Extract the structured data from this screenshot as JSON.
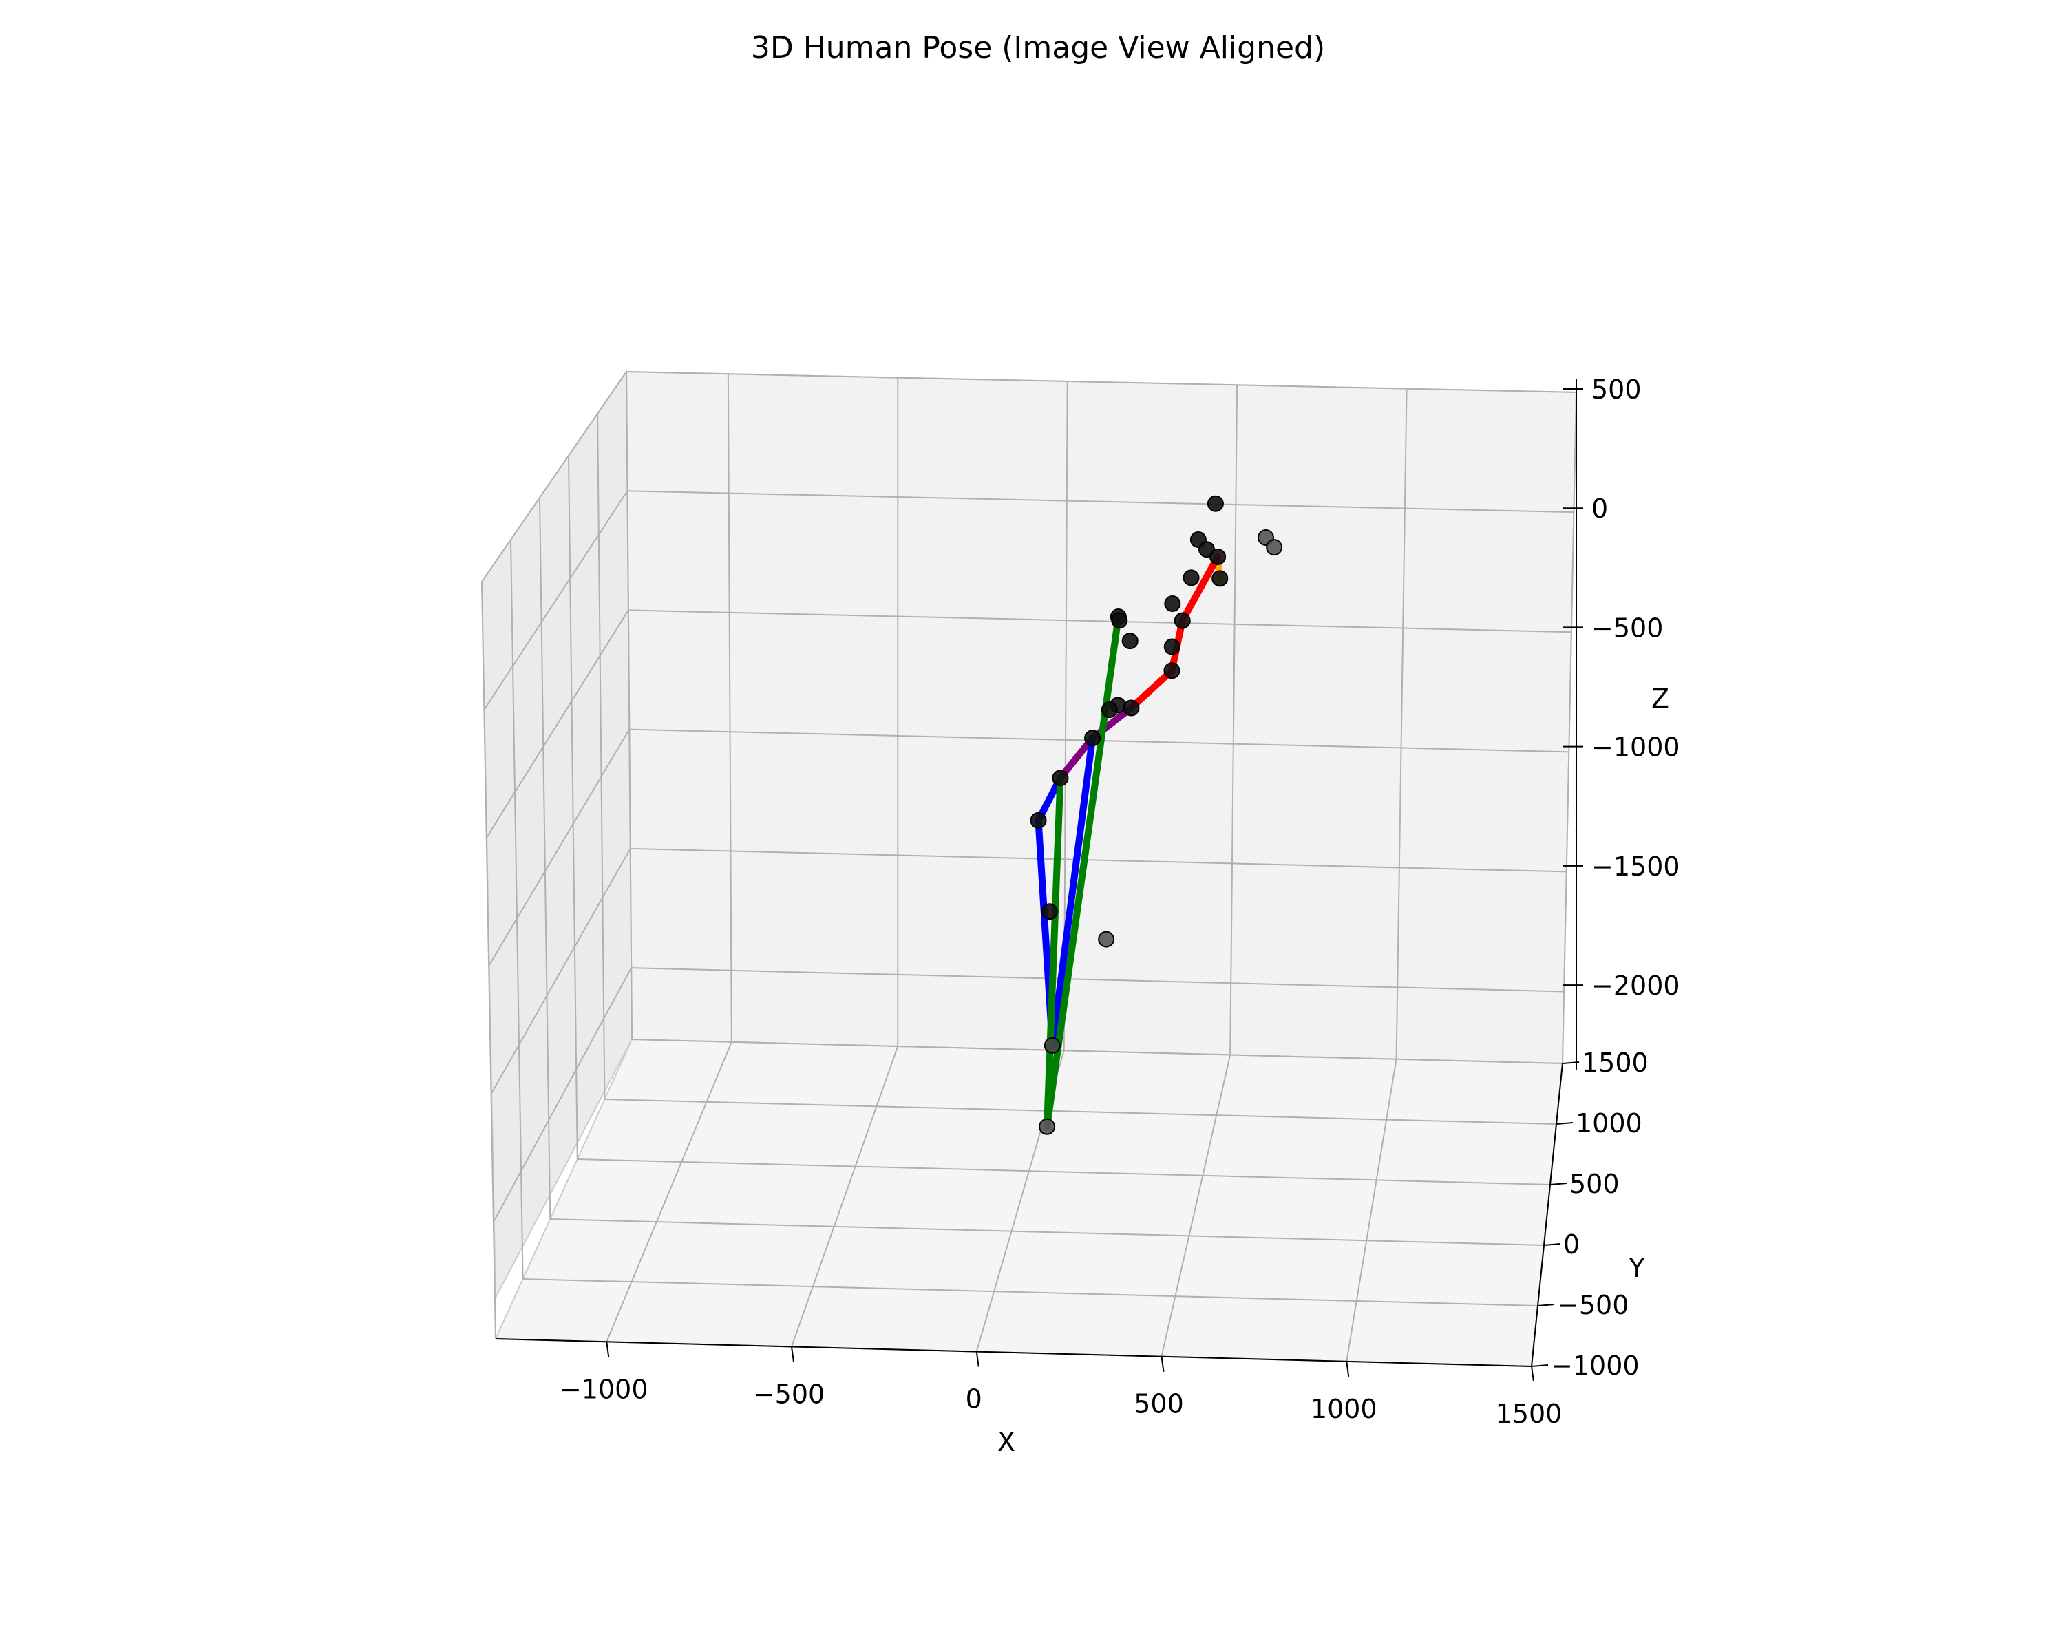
{
  "chart_data": {
    "type": "scatter",
    "projection": "3d",
    "title": "3D Human Pose (Image View Aligned)",
    "xlabel": "X",
    "ylabel": "Y",
    "zlabel": "Z",
    "xlim": [
      -1300,
      1500
    ],
    "ylim": [
      -1000,
      1500
    ],
    "zlim": [
      -2300,
      500
    ],
    "z_inverted": true,
    "grid": true,
    "x_ticks": [
      "−1000",
      "−500",
      "0",
      "500",
      "1000",
      "1500"
    ],
    "y_ticks": [
      "−1000",
      "−500",
      "0",
      "500",
      "1000",
      "1500"
    ],
    "z_ticks": [
      "500",
      "0",
      "−500",
      "−1000",
      "−1500",
      "−2000"
    ],
    "keypoints": [
      {
        "x": 440,
        "z": 2,
        "color": "#111111"
      },
      {
        "x": 390,
        "z": -150,
        "color": "#111111"
      },
      {
        "x": 415,
        "z": -190,
        "color": "#111111"
      },
      {
        "x": 448,
        "z": -220,
        "color": "#111111"
      },
      {
        "x": 590,
        "z": -135,
        "color": "#555555"
      },
      {
        "x": 615,
        "z": -175,
        "color": "#555555"
      },
      {
        "x": 370,
        "z": -310,
        "color": "#111111"
      },
      {
        "x": 455,
        "z": -310,
        "color": "#111111"
      },
      {
        "x": 315,
        "z": -420,
        "color": "#111111"
      },
      {
        "x": 345,
        "z": -490,
        "color": "#111111"
      },
      {
        "x": 155,
        "z": -480,
        "color": "#111111"
      },
      {
        "x": 158,
        "z": -495,
        "color": "#111111"
      },
      {
        "x": 190,
        "z": -580,
        "color": "#111111"
      },
      {
        "x": 315,
        "z": -600,
        "color": "#111111"
      },
      {
        "x": 315,
        "z": -700,
        "color": "#111111"
      },
      {
        "x": 155,
        "z": -850,
        "color": "#111111"
      },
      {
        "x": 195,
        "z": -860,
        "color": "#111111"
      },
      {
        "x": 130,
        "z": -870,
        "color": "#111111"
      },
      {
        "x": 80,
        "z": -990,
        "color": "#111111"
      },
      {
        "x": -15,
        "z": -1160,
        "color": "#111111"
      },
      {
        "x": -80,
        "z": -1340,
        "color": "#111111"
      },
      {
        "x": -45,
        "z": -1720,
        "color": "#111111"
      },
      {
        "x": 125,
        "z": -1830,
        "color": "#555555"
      },
      {
        "x": -35,
        "z": -2280,
        "color": "#444444"
      },
      {
        "x": -50,
        "z": -2620,
        "color": "#555555"
      }
    ],
    "bones": [
      {
        "color": "#ffa500",
        "from": 3,
        "to": 7
      },
      {
        "color": "#ff0000",
        "from": 3,
        "to": 9
      },
      {
        "color": "#ff0000",
        "from": 9,
        "to": 14
      },
      {
        "color": "#ff0000",
        "from": 14,
        "to": 16
      },
      {
        "color": "#800080",
        "from": 16,
        "to": 18
      },
      {
        "color": "#800080",
        "from": 18,
        "to": 19
      },
      {
        "color": "#0000ff",
        "from": 19,
        "to": 20
      },
      {
        "color": "#0000ff",
        "from": 20,
        "to": 23
      },
      {
        "color": "#0000ff",
        "from": 23,
        "to": 18
      },
      {
        "color": "#008000",
        "from": 10,
        "to": 24
      },
      {
        "color": "#008000",
        "from": 24,
        "to": 19
      }
    ]
  }
}
